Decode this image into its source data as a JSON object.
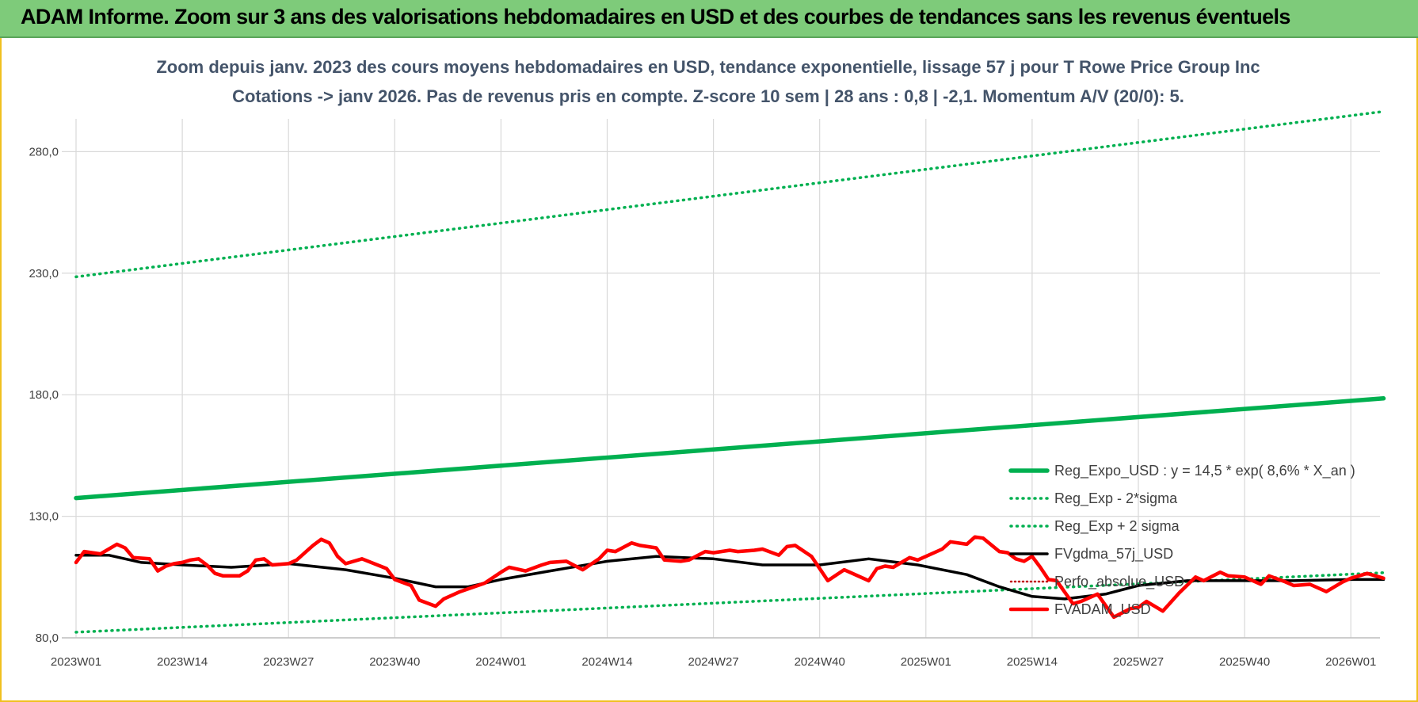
{
  "banner": {
    "title": "ADAM Informe. Zoom sur 3 ans des valorisations hebdomadaires en USD et des courbes de tendances sans les revenus éventuels"
  },
  "colors": {
    "regexpo": "#00b050",
    "sigma": "#00b050",
    "fvgdma": "#000000",
    "perfo": "#c00000",
    "fvadam": "#ff0000",
    "grid": "#d9d9d9",
    "banner_bg": "#7ecb7a",
    "frame": "#f0c020"
  },
  "chart_data": {
    "type": "line",
    "title_line1": "Zoom depuis janv. 2023 des cours moyens hebdomadaires en USD, tendance exponentielle, lissage 57 j pour T Rowe Price Group Inc",
    "title_line2": "Cotations -> janv 2026. Pas de revenus pris en compte. Z-score 10 sem | 28 ans : 0,8 | -2,1. Momentum A/V (20/0): 5.",
    "x_categories": [
      "2023W01",
      "2023W14",
      "2023W27",
      "2023W40",
      "2024W01",
      "2024W14",
      "2024W27",
      "2024W40",
      "2025W01",
      "2025W14",
      "2025W27",
      "2025W40",
      "2026W01"
    ],
    "n_weeks": 160,
    "ylim": [
      80,
      300
    ],
    "y_ticks": [
      80,
      130,
      180,
      230,
      280
    ],
    "y_tick_labels": [
      "80,0",
      "130,0",
      "180,0",
      "230,0",
      "280,0"
    ],
    "grid": true,
    "legend_position": "bottom-right",
    "series": [
      {
        "name": "Reg_Expo_USD : y = 14,5 * exp( 8,6% *  X_an )",
        "style": "solid-thick",
        "color": "#00b050",
        "x": [
          "2023W01",
          "2026W05"
        ],
        "y": [
          137.5,
          178.5
        ]
      },
      {
        "name": "Reg_Exp - 2*sigma",
        "style": "dotted",
        "color": "#00b050",
        "x": [
          "2023W01",
          "2026W05"
        ],
        "y": [
          82.3,
          106.8
        ]
      },
      {
        "name": "Reg_Exp + 2 sigma",
        "style": "dotted",
        "color": "#00b050",
        "x": [
          "2023W01",
          "2026W05"
        ],
        "y": [
          228.5,
          296.5
        ]
      },
      {
        "name": "FVgdma_57j_USD",
        "style": "solid",
        "color": "#000000",
        "x": [
          "2023W01",
          "2023W05",
          "2023W09",
          "2023W14",
          "2023W20",
          "2023W27",
          "2023W34",
          "2023W40",
          "2023W45",
          "2023W49",
          "2024W01",
          "2024W07",
          "2024W14",
          "2024W20",
          "2024W27",
          "2024W33",
          "2024W40",
          "2024W46",
          "2024W52",
          "2025W06",
          "2025W10",
          "2025W14",
          "2025W18",
          "2025W23",
          "2025W27",
          "2025W33",
          "2025W40",
          "2025W46",
          "2026W01",
          "2026W05"
        ],
        "y": [
          114,
          114,
          111,
          110,
          109,
          110.5,
          108,
          104.5,
          101,
          101,
          104,
          107.5,
          111.5,
          113.5,
          112.5,
          110,
          110,
          112.5,
          110,
          106,
          101,
          97,
          96,
          98,
          101.5,
          103.5,
          103.5,
          103.5,
          104,
          104
        ]
      },
      {
        "name": "Perfo_absolue_USD",
        "style": "dotted",
        "color": "#c00000",
        "x": [],
        "y": []
      },
      {
        "name": "FVADAM_USD",
        "style": "solid-thick",
        "color": "#ff0000",
        "x": [
          "2023W01",
          "2023W02",
          "2023W04",
          "2023W06",
          "2023W07",
          "2023W08",
          "2023W10",
          "2023W11",
          "2023W12",
          "2023W13",
          "2023W14",
          "2023W15",
          "2023W16",
          "2023W17",
          "2023W18",
          "2023W19",
          "2023W21",
          "2023W22",
          "2023W23",
          "2023W24",
          "2023W25",
          "2023W27",
          "2023W28",
          "2023W30",
          "2023W31",
          "2023W32",
          "2023W33",
          "2023W34",
          "2023W36",
          "2023W39",
          "2023W40",
          "2023W42",
          "2023W43",
          "2023W45",
          "2023W46",
          "2023W48",
          "2023W51",
          "2024W01",
          "2024W02",
          "2024W04",
          "2024W06",
          "2024W07",
          "2024W09",
          "2024W11",
          "2024W13",
          "2024W14",
          "2024W15",
          "2024W17",
          "2024W18",
          "2024W20",
          "2024W21",
          "2024W23",
          "2024W24",
          "2024W26",
          "2024W27",
          "2024W29",
          "2024W30",
          "2024W32",
          "2024W33",
          "2024W35",
          "2024W36",
          "2024W37",
          "2024W39",
          "2024W41",
          "2024W43",
          "2024W44",
          "2024W46",
          "2024W47",
          "2024W48",
          "2024W49",
          "2024W51",
          "2024W52",
          "2025W03",
          "2025W04",
          "2025W06",
          "2025W07",
          "2025W08",
          "2025W10",
          "2025W11",
          "2025W12",
          "2025W13",
          "2025W14",
          "2025W15",
          "2025W16",
          "2025W17",
          "2025W19",
          "2025W20",
          "2025W22",
          "2025W24",
          "2025W26",
          "2025W27",
          "2025W28",
          "2025W30",
          "2025W32",
          "2025W34",
          "2025W35",
          "2025W37",
          "2025W38",
          "2025W40",
          "2025W42",
          "2025W43",
          "2025W45",
          "2025W46",
          "2025W48",
          "2025W50",
          "2025W52",
          "2026W01",
          "2026W03",
          "2026W05"
        ],
        "y": [
          111,
          115.5,
          114.5,
          118.5,
          117,
          113,
          112.5,
          107.5,
          109.5,
          110.5,
          111,
          112,
          112.5,
          110,
          106.5,
          105.5,
          105.5,
          107.5,
          112,
          112.5,
          110,
          110.5,
          112,
          118,
          120.5,
          119,
          113.5,
          110.5,
          112.5,
          108.5,
          104,
          101.5,
          95.5,
          93,
          96,
          99,
          102.5,
          107,
          109,
          107.5,
          110,
          111,
          111.5,
          108,
          112.5,
          116,
          115.5,
          119,
          118,
          117,
          112,
          111.5,
          112,
          115.5,
          115,
          116,
          115.5,
          116,
          116.5,
          114,
          117.5,
          118,
          113.5,
          103.5,
          108,
          106.5,
          103.5,
          108.5,
          109.5,
          109,
          113,
          112,
          116.5,
          119.5,
          118.5,
          121.5,
          121,
          115.5,
          115,
          112.5,
          111.5,
          113.5,
          109,
          104,
          103.5,
          94,
          95,
          98,
          88.5,
          92,
          92.5,
          95,
          91,
          98.5,
          105,
          103.5,
          107,
          105.5,
          105,
          102,
          105.5,
          103,
          101.5,
          102,
          99,
          103,
          104.5,
          106.5,
          104.5
        ]
      }
    ]
  }
}
